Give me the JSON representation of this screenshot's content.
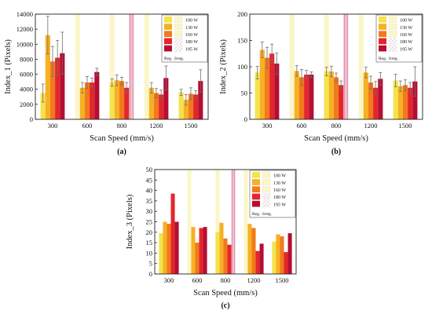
{
  "colors": {
    "p100": "#f3e34c",
    "p130": "#f7b024",
    "p160": "#f07a1c",
    "p180": "#e3262c",
    "p195": "#b50e33",
    "irreg_yellow": "#fbf6c8",
    "irreg_pink": "#f2bfcf",
    "error_bar": "#6e6e6e",
    "axis": "#222222"
  },
  "legend_labels": {
    "powers": [
      "100 W",
      "130 W",
      "160 W",
      "180 W",
      "195 W"
    ],
    "reg": "Reg.",
    "irreg": "Irreg."
  },
  "chart_data": [
    {
      "type": "bar",
      "panel_label": "(a)",
      "xlabel": "Scan Speed (mm/s)",
      "ylabel": "Index_1 (Pixels)",
      "categories": [
        "300",
        "600",
        "800",
        "1200",
        "1500"
      ],
      "ylim": [
        0,
        14000
      ],
      "yticks": [
        0,
        2000,
        4000,
        6000,
        8000,
        10000,
        12000,
        14000
      ],
      "grid": false,
      "legend_position": "top-right",
      "series": [
        {
          "name": "100 W",
          "values": [
            3500,
            null,
            4900,
            null,
            3600
          ],
          "errors": [
            1200,
            null,
            500,
            null,
            400
          ]
        },
        {
          "name": "130 W",
          "values": [
            11200,
            4200,
            5200,
            4200,
            2600
          ],
          "errors": [
            2500,
            700,
            700,
            700,
            700
          ]
        },
        {
          "name": "160 W",
          "values": [
            7700,
            4900,
            5100,
            3500,
            3400
          ],
          "errors": [
            2000,
            800,
            500,
            600,
            800
          ]
        },
        {
          "name": "180 W",
          "values": [
            8200,
            4900,
            4200,
            3300,
            3300
          ],
          "errors": [
            2300,
            600,
            700,
            600,
            500
          ]
        },
        {
          "name": "195 W",
          "values": [
            8800,
            6300,
            null,
            5500,
            5100
          ],
          "errors": [
            2800,
            500,
            null,
            1600,
            1500
          ]
        }
      ],
      "irregular_bands": [
        {
          "category": "600",
          "slot": 0,
          "color": "yellow"
        },
        {
          "category": "800",
          "slot": 0,
          "color": "yellow"
        },
        {
          "category": "800",
          "slot": 4,
          "color": "pink"
        },
        {
          "category": "1200",
          "slot": 0,
          "color": "yellow"
        }
      ]
    },
    {
      "type": "bar",
      "panel_label": "(b)",
      "xlabel": "Scan Speed (mm/s)",
      "ylabel": "Index_2 (Pixels)",
      "categories": [
        "300",
        "600",
        "800",
        "1200",
        "1500"
      ],
      "ylim": [
        0,
        200
      ],
      "yticks": [
        0,
        50,
        100,
        150,
        200
      ],
      "grid": false,
      "legend_position": "top-right",
      "series": [
        {
          "name": "100 W",
          "values": [
            89,
            null,
            91,
            null,
            74
          ],
          "errors": [
            12,
            null,
            8,
            null,
            12
          ]
        },
        {
          "name": "130 W",
          "values": [
            132,
            92,
            91,
            89,
            63
          ],
          "errors": [
            15,
            10,
            10,
            10,
            10
          ]
        },
        {
          "name": "160 W",
          "values": [
            117,
            80,
            80,
            70,
            65
          ],
          "errors": [
            20,
            15,
            8,
            12,
            10
          ]
        },
        {
          "name": "180 W",
          "values": [
            125,
            85,
            65,
            60,
            60
          ],
          "errors": [
            18,
            8,
            8,
            12,
            10
          ]
        },
        {
          "name": "195 W",
          "values": [
            106,
            85,
            null,
            77,
            72
          ],
          "errors": [
            20,
            5,
            null,
            12,
            28
          ]
        }
      ],
      "irregular_bands": [
        {
          "category": "600",
          "slot": 0,
          "color": "yellow"
        },
        {
          "category": "800",
          "slot": 0,
          "color": "yellow"
        },
        {
          "category": "800",
          "slot": 4,
          "color": "pink"
        },
        {
          "category": "1200",
          "slot": 0,
          "color": "yellow"
        }
      ]
    },
    {
      "type": "bar",
      "panel_label": "(c)",
      "xlabel": "Scan Speed (mm/s)",
      "ylabel": "Index_3 (Pixels)",
      "categories": [
        "300",
        "600",
        "800",
        "1200",
        "1500"
      ],
      "ylim": [
        0,
        50
      ],
      "yticks": [
        0,
        5,
        10,
        15,
        20,
        25,
        30,
        35,
        40,
        45,
        50
      ],
      "grid": false,
      "legend_position": "top-right",
      "series": [
        {
          "name": "100 W",
          "values": [
            19.5,
            null,
            20,
            null,
            15.5
          ]
        },
        {
          "name": "130 W",
          "values": [
            25,
            22.5,
            24.5,
            24,
            19
          ]
        },
        {
          "name": "160 W",
          "values": [
            24,
            15,
            17,
            22,
            18
          ]
        },
        {
          "name": "180 W",
          "values": [
            38.5,
            22,
            14,
            11,
            10.5
          ]
        },
        {
          "name": "195 W",
          "values": [
            25,
            22.5,
            null,
            14.5,
            19.5
          ]
        }
      ],
      "irregular_bands": [
        {
          "category": "600",
          "slot": 0,
          "color": "yellow"
        },
        {
          "category": "800",
          "slot": 0,
          "color": "yellow"
        },
        {
          "category": "800",
          "slot": 4,
          "color": "pink"
        },
        {
          "category": "1200",
          "slot": 0,
          "color": "yellow"
        }
      ]
    }
  ]
}
